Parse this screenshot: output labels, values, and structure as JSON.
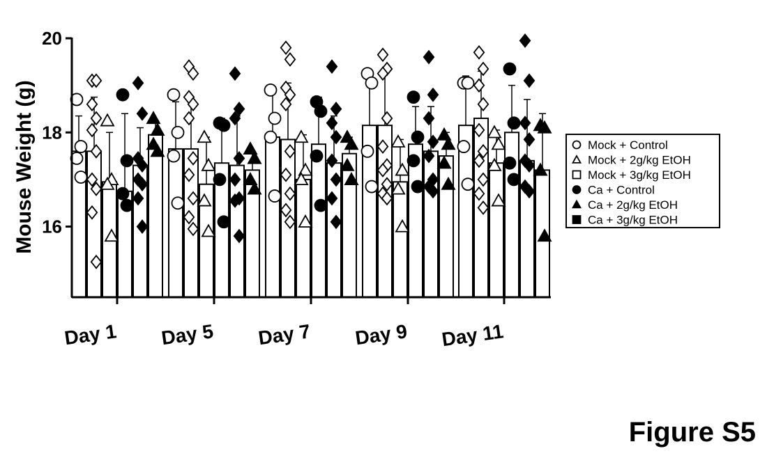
{
  "figure_label": "Figure S5",
  "chart_data": {
    "type": "bar",
    "title": "",
    "xlabel": "",
    "ylabel": "Mouse Weight (g)",
    "ylim": [
      14.5,
      20
    ],
    "yticks": [
      16,
      18,
      20
    ],
    "legend_position": "right",
    "categories": [
      "Day 1",
      "Day 5",
      "Day 7",
      "Day 9",
      "Day 11"
    ],
    "series": [
      {
        "name": "Mock + Control",
        "marker": "circle-open",
        "values": [
          17.6,
          17.65,
          17.9,
          18.15,
          18.15
        ],
        "errors": [
          0.75,
          1.0,
          1.0,
          1.1,
          1.05
        ],
        "points": [
          [
            18.7,
            17.7,
            17.45,
            17.05
          ],
          [
            18.8,
            18.0,
            17.5,
            16.5
          ],
          [
            18.9,
            18.3,
            17.9,
            16.65
          ],
          [
            19.25,
            19.05,
            17.6,
            16.85
          ],
          [
            19.05,
            19.05,
            17.7,
            16.9
          ]
        ]
      },
      {
        "name": "Mock + 2g/kg EtOH",
        "marker": "diamond-open",
        "values": [
          17.6,
          17.65,
          17.85,
          18.15,
          18.3
        ],
        "errors": [
          1.15,
          1.1,
          1.2,
          1.1,
          1.0
        ],
        "points": [
          [
            19.1,
            19.1,
            18.6,
            18.3,
            18.05,
            17.6,
            17.0,
            16.8,
            16.3,
            15.25
          ],
          [
            19.4,
            19.25,
            18.75,
            18.6,
            18.3,
            17.45,
            17.1,
            16.6,
            16.2,
            15.95
          ],
          [
            19.8,
            19.55,
            18.95,
            18.8,
            18.6,
            17.6,
            17.1,
            16.7,
            16.35,
            16.1
          ],
          [
            19.65,
            19.35,
            19.25,
            18.3,
            17.7,
            17.3,
            17.2,
            16.9,
            16.7,
            16.6
          ],
          [
            19.7,
            19.35,
            19.0,
            18.6,
            18.05,
            17.6,
            17.4,
            17.0,
            16.7,
            16.4
          ]
        ]
      },
      {
        "name": "Mock + 3g/kg EtOH",
        "marker": "triangle-open",
        "values": [
          16.95,
          16.9,
          17.0,
          16.95,
          17.35
        ],
        "errors": [
          1.05,
          1.0,
          0.95,
          0.9,
          0.7
        ],
        "points": [
          [
            18.25,
            17.0,
            16.9,
            15.8
          ],
          [
            17.9,
            17.3,
            16.55,
            15.9
          ],
          [
            17.9,
            17.2,
            17.0,
            16.1
          ],
          [
            17.8,
            17.2,
            16.8,
            16.0
          ],
          [
            18.0,
            17.75,
            17.3,
            16.55
          ]
        ]
      },
      {
        "name": "Ca + Control",
        "marker": "circle-filled",
        "values": [
          16.75,
          17.35,
          17.75,
          17.75,
          18.0
        ],
        "errors": [
          1.65,
          0.95,
          1.0,
          0.8,
          1.0
        ],
        "points": [
          [
            18.8,
            17.4,
            16.7,
            16.45
          ],
          [
            18.2,
            18.15,
            17.0,
            16.1
          ],
          [
            18.65,
            18.45,
            17.5,
            16.45
          ],
          [
            18.75,
            17.9,
            17.4,
            16.85
          ],
          [
            19.35,
            18.2,
            17.35,
            17.0
          ]
        ]
      },
      {
        "name": "Ca + 2g/kg EtOH",
        "marker": "diamond-filled",
        "values": [
          17.3,
          17.3,
          17.35,
          17.6,
          17.4
        ],
        "errors": [
          0.8,
          1.05,
          1.0,
          0.95,
          1.3
        ],
        "points": [
          [
            19.05,
            18.4,
            17.45,
            17.3,
            17.0,
            16.9,
            16.6,
            16.0
          ],
          [
            19.25,
            18.5,
            18.3,
            17.45,
            17.0,
            16.6,
            16.55,
            15.8
          ],
          [
            19.4,
            18.5,
            18.2,
            17.9,
            17.4,
            17.0,
            16.6,
            16.1
          ],
          [
            19.6,
            18.8,
            18.3,
            17.8,
            17.5,
            17.0,
            16.85,
            16.75
          ],
          [
            19.95,
            19.1,
            18.2,
            17.85,
            17.4,
            17.3,
            16.85,
            16.75
          ]
        ]
      },
      {
        "name": "Ca + 3g/kg EtOH",
        "marker": "triangle-filled",
        "values": [
          17.95,
          17.2,
          17.55,
          17.5,
          17.2
        ],
        "errors": [
          0.3,
          0.4,
          0.35,
          0.5,
          1.2
        ],
        "points": [
          [
            18.3,
            18.05,
            17.75,
            17.6
          ],
          [
            17.65,
            17.45,
            17.0,
            16.8
          ],
          [
            17.9,
            17.75,
            17.3,
            17.0
          ],
          [
            17.95,
            17.75,
            17.35,
            16.9
          ],
          [
            18.15,
            18.1,
            17.2,
            15.8
          ]
        ]
      },
      {
        "name": "Ca + 3g/kg EtOH",
        "marker": "square-filled",
        "legend_only": true
      }
    ],
    "legend": [
      {
        "label": "Mock + Control",
        "marker": "circle-open"
      },
      {
        "label": "Mock + 2g/kg EtOH",
        "marker": "triangle-open"
      },
      {
        "label": "Mock + 3g/kg EtOH",
        "marker": "square-open"
      },
      {
        "label": "Ca + Control",
        "marker": "circle-filled"
      },
      {
        "label": "Ca + 2g/kg EtOH",
        "marker": "triangle-filled"
      },
      {
        "label": "Ca + 3g/kg EtOH",
        "marker": "square-filled"
      }
    ]
  }
}
